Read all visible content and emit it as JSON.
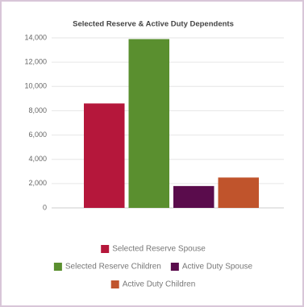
{
  "chart_data": {
    "type": "bar",
    "title": "Selected Reserve & Active Duty Dependents",
    "categories": [
      null
    ],
    "series": [
      {
        "name": "Selected Reserve Spouse",
        "color": "#b5173b",
        "values": [
          8600
        ]
      },
      {
        "name": "Selected Reserve Children",
        "color": "#5a8f2f",
        "values": [
          13900
        ]
      },
      {
        "name": "Active Duty Spouse",
        "color": "#5a0c4c",
        "values": [
          1800
        ]
      },
      {
        "name": "Active Duty Children",
        "color": "#c0542c",
        "values": [
          2500
        ]
      }
    ],
    "ylim": [
      0,
      14000
    ],
    "yticks": [
      0,
      {
        "value": 2000,
        "label": "2,000"
      },
      {
        "value": 4000,
        "label": "4,000"
      },
      {
        "value": 6000,
        "label": "6,000"
      },
      {
        "value": 8000,
        "label": "8,000"
      },
      {
        "value": 10000,
        "label": "10,000"
      },
      {
        "value": 12000,
        "label": "12,000"
      },
      {
        "value": 14000,
        "label": "14,000"
      }
    ],
    "grid": true
  }
}
